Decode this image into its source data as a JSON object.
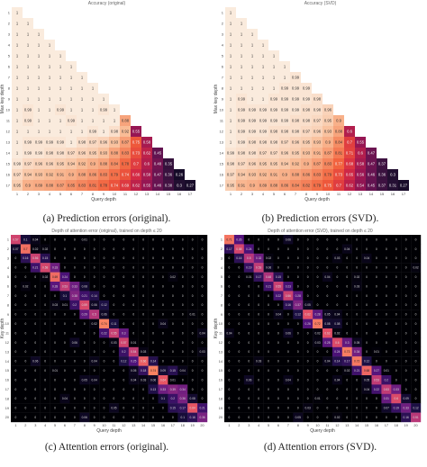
{
  "figure": {
    "captions": {
      "a": "(a) Prediction errors (original).",
      "b": "(b) Prediction errors (SVD).",
      "c": "(c) Attention errors (original).",
      "d": "(d) Attention errors (SVD)."
    }
  },
  "chart_data": [
    {
      "id": "a",
      "type": "heatmap",
      "title": "Accuracy (original)",
      "xlabel": "Query depth",
      "ylabel": "Max key depth",
      "n": 17,
      "colormap": "rocket",
      "vmin": 0.2,
      "vmax": 1.0,
      "value_source": "prediction_original"
    },
    {
      "id": "b",
      "type": "heatmap",
      "title": "Accuracy (SVD)",
      "xlabel": "Query depth",
      "ylabel": "Max key depth",
      "n": 17,
      "colormap": "rocket",
      "vmin": 0.2,
      "vmax": 1.0,
      "value_source": "prediction_svd"
    },
    {
      "id": "c",
      "type": "heatmap",
      "title": "Depth of attention error (original), trained on depth ≤ 20",
      "xlabel": "Query depth",
      "ylabel": "Key depth",
      "n": 20,
      "colormap": "magma",
      "vmin": 0,
      "vmax": 1.0
    },
    {
      "id": "d",
      "type": "heatmap",
      "title": "Depth of attention error (SVD), trained on depth ≤ 20",
      "xlabel": "Query depth",
      "ylabel": "Key depth",
      "n": 20,
      "colormap": "magma",
      "vmin": 0,
      "vmax": 1.0
    }
  ],
  "prediction_original": [
    [
      1
    ],
    [
      1,
      1
    ],
    [
      1,
      1,
      1
    ],
    [
      1,
      1,
      1,
      1
    ],
    [
      1,
      1,
      1,
      1,
      1
    ],
    [
      1,
      1,
      1,
      1,
      1,
      1
    ],
    [
      1,
      1,
      1,
      1,
      1,
      1,
      1
    ],
    [
      1,
      1,
      1,
      1,
      1,
      1,
      1,
      1
    ],
    [
      1,
      1,
      1,
      1,
      1,
      1,
      1,
      1,
      1
    ],
    [
      1,
      0.99,
      1,
      1,
      0.99,
      1,
      1,
      1,
      0.99,
      1
    ],
    [
      1,
      0.99,
      1,
      1,
      1,
      0.99,
      1,
      1,
      1,
      1,
      0.88
    ],
    [
      1,
      1,
      1,
      1,
      1,
      1,
      1,
      0.99,
      1,
      0.98,
      0.92,
      0.55
    ],
    [
      1,
      0.99,
      0.99,
      0.99,
      0.99,
      1,
      0.98,
      0.97,
      0.96,
      0.93,
      0.87,
      0.75,
      0.58
    ],
    [
      1,
      0.99,
      0.99,
      0.98,
      0.98,
      0.97,
      0.96,
      0.95,
      0.93,
      0.88,
      0.83,
      0.73,
      0.62,
      0.45
    ],
    [
      0.99,
      0.97,
      0.96,
      0.96,
      0.95,
      0.94,
      0.92,
      0.9,
      0.88,
      0.84,
      0.78,
      0.7,
      0.6,
      0.48,
      0.35
    ],
    [
      0.97,
      0.94,
      0.93,
      0.92,
      0.91,
      0.9,
      0.88,
      0.86,
      0.83,
      0.79,
      0.74,
      0.66,
      0.58,
      0.47,
      0.36,
      0.26
    ],
    [
      0.95,
      0.9,
      0.89,
      0.88,
      0.87,
      0.85,
      0.83,
      0.81,
      0.78,
      0.74,
      0.69,
      0.62,
      0.55,
      0.46,
      0.38,
      0.3,
      0.27
    ]
  ],
  "prediction_svd": [
    [
      1
    ],
    [
      1,
      1
    ],
    [
      1,
      1,
      1
    ],
    [
      1,
      1,
      1,
      1
    ],
    [
      1,
      1,
      1,
      1,
      1
    ],
    [
      1,
      1,
      1,
      1,
      1,
      1
    ],
    [
      1,
      1,
      1,
      1,
      1,
      1,
      0.99
    ],
    [
      1,
      1,
      1,
      1,
      1,
      0.99,
      0.99,
      0.99
    ],
    [
      1,
      0.99,
      1,
      1,
      0.99,
      0.99,
      0.99,
      0.99,
      0.98
    ],
    [
      1,
      0.99,
      0.99,
      0.99,
      0.99,
      0.99,
      0.99,
      0.98,
      0.98,
      0.96
    ],
    [
      1,
      0.99,
      0.99,
      0.99,
      0.99,
      0.99,
      0.98,
      0.98,
      0.97,
      0.95,
      0.9
    ],
    [
      1,
      0.99,
      0.99,
      0.99,
      0.98,
      0.98,
      0.98,
      0.97,
      0.96,
      0.93,
      0.88,
      0.6
    ],
    [
      1,
      0.99,
      0.98,
      0.98,
      0.98,
      0.97,
      0.96,
      0.95,
      0.93,
      0.9,
      0.84,
      0.7,
      0.55
    ],
    [
      0.99,
      0.98,
      0.98,
      0.97,
      0.97,
      0.96,
      0.95,
      0.93,
      0.91,
      0.87,
      0.81,
      0.71,
      0.6,
      0.47
    ],
    [
      0.98,
      0.97,
      0.96,
      0.95,
      0.95,
      0.94,
      0.92,
      0.9,
      0.87,
      0.83,
      0.77,
      0.68,
      0.58,
      0.47,
      0.37
    ],
    [
      0.97,
      0.94,
      0.93,
      0.92,
      0.91,
      0.9,
      0.88,
      0.86,
      0.83,
      0.79,
      0.73,
      0.65,
      0.56,
      0.46,
      0.36,
      0.3
    ],
    [
      0.95,
      0.91,
      0.9,
      0.89,
      0.88,
      0.86,
      0.84,
      0.82,
      0.79,
      0.75,
      0.7,
      0.62,
      0.54,
      0.45,
      0.37,
      0.31,
      0.27
    ]
  ]
}
